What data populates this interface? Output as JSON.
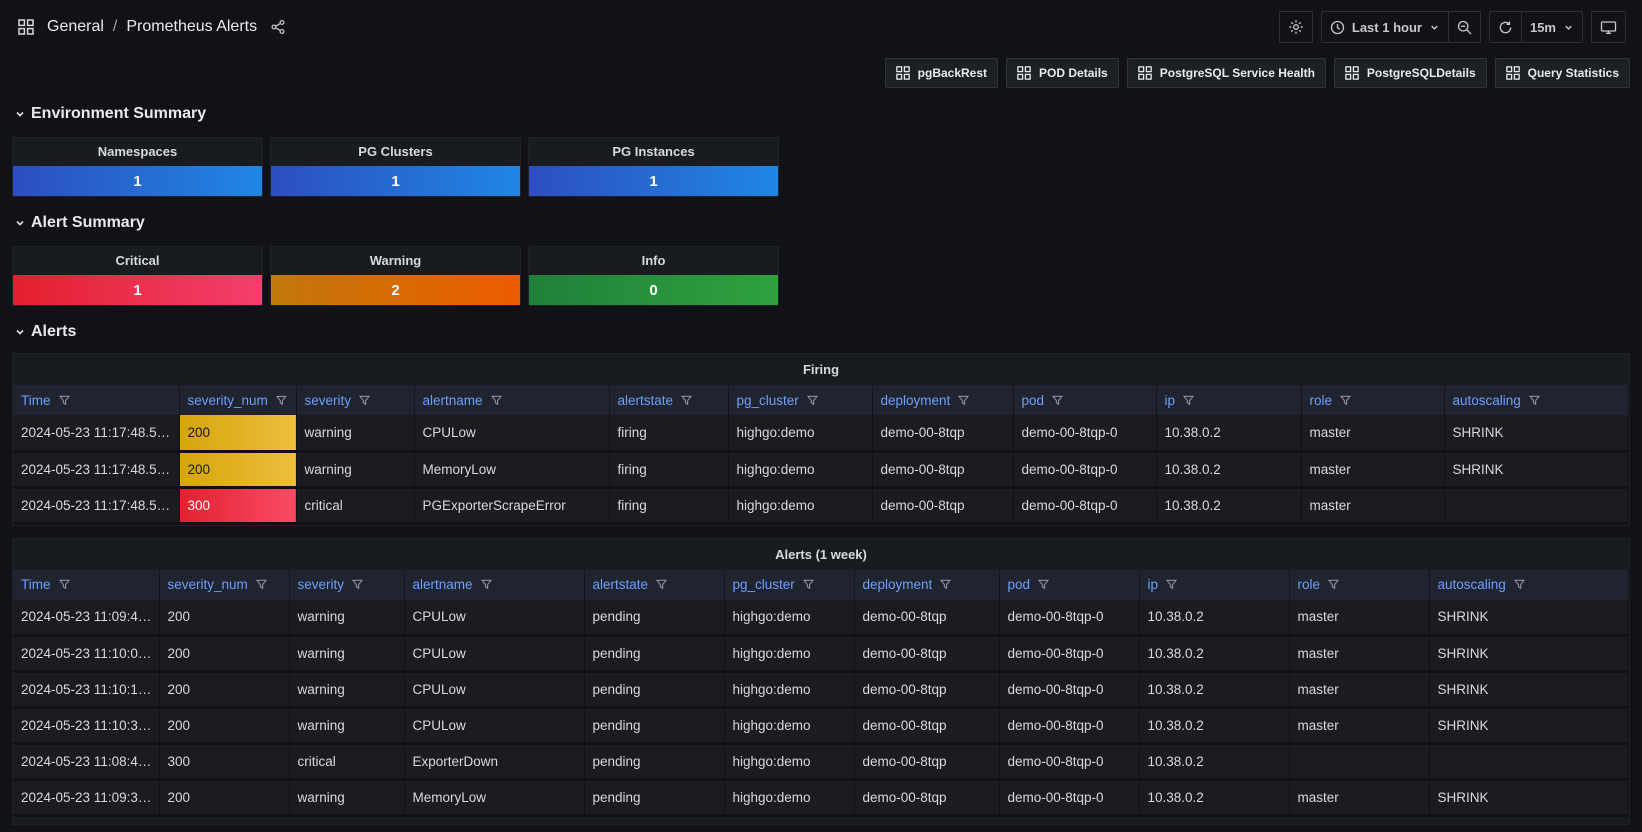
{
  "nav": {
    "breadcrumb": {
      "folder": "General",
      "separator": "/",
      "title": "Prometheus Alerts"
    },
    "time_range_label": "Last 1 hour",
    "refresh_interval": "15m",
    "icons": [
      "apps-grid-icon",
      "share-icon",
      "gear-icon",
      "clock-icon",
      "chevron-down-icon",
      "zoom-out-icon",
      "refresh-icon",
      "tv-kiosk-icon"
    ]
  },
  "links": [
    "pgBackRest",
    "POD Details",
    "PostgreSQL Service Health",
    "PostgreSQLDetails",
    "Query Statistics"
  ],
  "sections": {
    "environment": {
      "title": "Environment Summary"
    },
    "alert_summary": {
      "title": "Alert Summary"
    },
    "alerts": {
      "title": "Alerts"
    }
  },
  "stat_sections": [
    {
      "panels": [
        {
          "title": "Namespaces",
          "value": "1",
          "color": "blue"
        },
        {
          "title": "PG Clusters",
          "value": "1",
          "color": "blue"
        },
        {
          "title": "PG Instances",
          "value": "1",
          "color": "blue"
        }
      ]
    },
    {
      "panels": [
        {
          "title": "Critical",
          "value": "1",
          "color": "red"
        },
        {
          "title": "Warning",
          "value": "2",
          "color": "orange"
        },
        {
          "title": "Info",
          "value": "0",
          "color": "green"
        }
      ]
    }
  ],
  "tables": [
    {
      "title": "Firing",
      "columns": [
        "Time",
        "severity_num",
        "severity",
        "alertname",
        "alertstate",
        "pg_cluster",
        "deployment",
        "pod",
        "ip",
        "role",
        "autoscaling"
      ],
      "rows": [
        {
          "cells": [
            "2024-05-23 11:17:48.5…",
            "200",
            "warning",
            "CPULow",
            "firing",
            "highgo:demo",
            "demo-00-8tqp",
            "demo-00-8tqp-0",
            "10.38.0.2",
            "master",
            "SHRINK"
          ],
          "severity_num_color": "gold"
        },
        {
          "cells": [
            "2024-05-23 11:17:48.5…",
            "200",
            "warning",
            "MemoryLow",
            "firing",
            "highgo:demo",
            "demo-00-8tqp",
            "demo-00-8tqp-0",
            "10.38.0.2",
            "master",
            "SHRINK"
          ],
          "severity_num_color": "gold"
        },
        {
          "cells": [
            "2024-05-23 11:17:48.5…",
            "300",
            "critical",
            "PGExporterScrapeError",
            "firing",
            "highgo:demo",
            "demo-00-8tqp",
            "demo-00-8tqp-0",
            "10.38.0.2",
            "master",
            ""
          ],
          "severity_num_color": "red"
        }
      ]
    },
    {
      "title": "Alerts (1 week)",
      "columns": [
        "Time",
        "severity_num",
        "severity",
        "alertname",
        "alertstate",
        "pg_cluster",
        "deployment",
        "pod",
        "ip",
        "role",
        "autoscaling"
      ],
      "rows": [
        {
          "cells": [
            "2024-05-23 11:09:4…",
            "200",
            "warning",
            "CPULow",
            "pending",
            "highgo:demo",
            "demo-00-8tqp",
            "demo-00-8tqp-0",
            "10.38.0.2",
            "master",
            "SHRINK"
          ],
          "severity_num_color": null
        },
        {
          "cells": [
            "2024-05-23 11:10:0…",
            "200",
            "warning",
            "CPULow",
            "pending",
            "highgo:demo",
            "demo-00-8tqp",
            "demo-00-8tqp-0",
            "10.38.0.2",
            "master",
            "SHRINK"
          ],
          "severity_num_color": null
        },
        {
          "cells": [
            "2024-05-23 11:10:1…",
            "200",
            "warning",
            "CPULow",
            "pending",
            "highgo:demo",
            "demo-00-8tqp",
            "demo-00-8tqp-0",
            "10.38.0.2",
            "master",
            "SHRINK"
          ],
          "severity_num_color": null
        },
        {
          "cells": [
            "2024-05-23 11:10:3…",
            "200",
            "warning",
            "CPULow",
            "pending",
            "highgo:demo",
            "demo-00-8tqp",
            "demo-00-8tqp-0",
            "10.38.0.2",
            "master",
            "SHRINK"
          ],
          "severity_num_color": null
        },
        {
          "cells": [
            "2024-05-23 11:08:4…",
            "300",
            "critical",
            "ExporterDown",
            "pending",
            "highgo:demo",
            "demo-00-8tqp",
            "demo-00-8tqp-0",
            "10.38.0.2",
            "",
            ""
          ],
          "severity_num_color": null
        },
        {
          "cells": [
            "2024-05-23 11:09:3…",
            "200",
            "warning",
            "MemoryLow",
            "pending",
            "highgo:demo",
            "demo-00-8tqp",
            "demo-00-8tqp-0",
            "10.38.0.2",
            "master",
            "SHRINK"
          ],
          "severity_num_color": null
        }
      ]
    }
  ],
  "colors": {
    "background": "#111217",
    "panel": "#181b1f",
    "table_header_bg": "#1f242e",
    "column_link_blue": "#6e9fff",
    "stat_blue": [
      "#2d4ec0",
      "#1f87e4"
    ],
    "stat_red": [
      "#e3202e",
      "#f43f6c"
    ],
    "stat_orange": [
      "#c1790a",
      "#ed5b01"
    ],
    "stat_green": [
      "#20803a",
      "#2fa23e"
    ],
    "cell_gold": [
      "#d6a50a",
      "#ecbe3e"
    ],
    "cell_red": [
      "#e32130",
      "#fa4b65"
    ]
  }
}
